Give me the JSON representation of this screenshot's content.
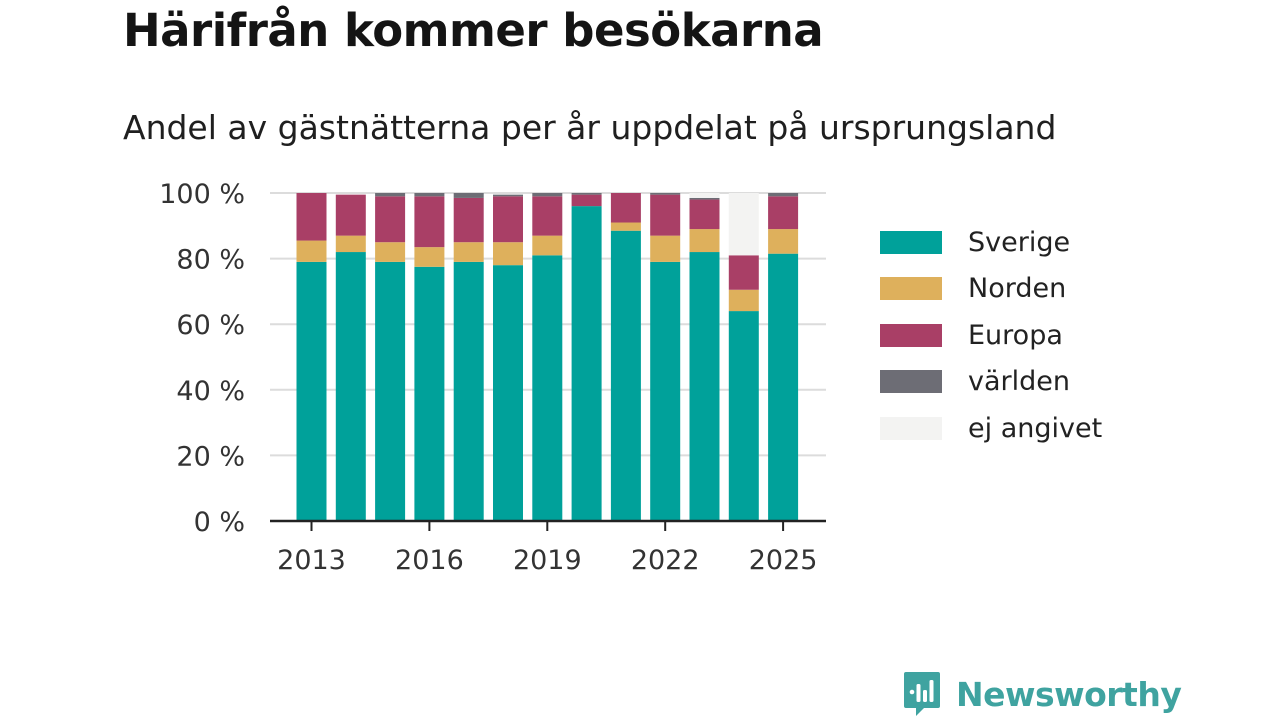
{
  "title": "Härifrån kommer besökarna",
  "subtitle": "Andel av gästnätterna per år uppdelat på ursprungsland",
  "brand": {
    "name": "Newsworthy",
    "icon": "newsworthy-logo-icon",
    "color": "#3fa3a0"
  },
  "chart_data": {
    "type": "bar",
    "stacked": true,
    "categories": [
      "2013",
      "2014",
      "2015",
      "2016",
      "2017",
      "2018",
      "2019",
      "2020",
      "2021",
      "2022",
      "2023",
      "2024",
      "2025"
    ],
    "x_tick_labels": [
      "2013",
      "2016",
      "2019",
      "2022",
      "2025"
    ],
    "y_tick_labels": [
      "0 %",
      "20 %",
      "40 %",
      "60 %",
      "80 %",
      "100 %"
    ],
    "ylim": [
      0,
      100
    ],
    "grid": true,
    "legend_position": "right",
    "series": [
      {
        "name": "Sverige",
        "color": "#00a19a",
        "values": [
          79,
          82,
          79,
          77.5,
          79,
          78,
          81,
          96,
          88.5,
          79,
          82,
          64,
          81.5
        ]
      },
      {
        "name": "Norden",
        "color": "#deb05c",
        "values": [
          6.5,
          5,
          6,
          6,
          6,
          7,
          6,
          0,
          2.5,
          8,
          7,
          6.5,
          7.5
        ]
      },
      {
        "name": "Europa",
        "color": "#a93f66",
        "values": [
          14.5,
          12.5,
          14,
          15.5,
          13.5,
          14,
          12,
          3.5,
          9,
          12.5,
          9,
          10.5,
          10
        ]
      },
      {
        "name": "världen",
        "color": "#6d6d75",
        "values": [
          0,
          0,
          1,
          1,
          1.5,
          0.5,
          1,
          0.5,
          0,
          0.5,
          0.5,
          0,
          1
        ]
      },
      {
        "name": "ej angivet",
        "color": "#f3f3f2",
        "values": [
          0,
          0,
          0,
          0,
          0,
          0,
          0,
          0,
          0,
          0,
          1.5,
          19,
          0
        ]
      }
    ]
  }
}
